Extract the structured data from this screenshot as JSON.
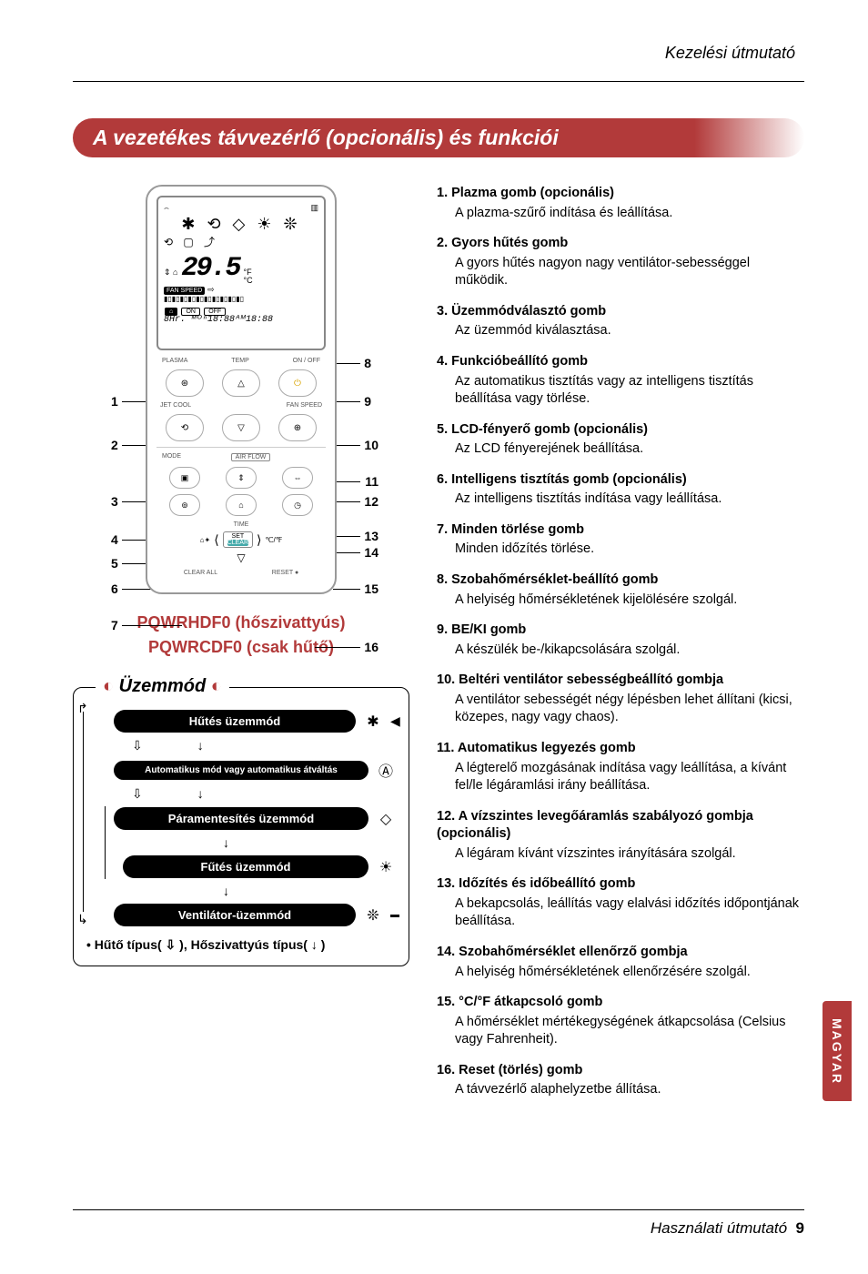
{
  "header": {
    "doc_title": "Kezelési útmutató"
  },
  "title_bar": "A vezetékes távvezérlő (opcionális) és funkciói",
  "remote": {
    "lcd": {
      "top_left": "⌢",
      "top_right": "▥",
      "icon_row": "✱ ⟲ ◇ ☀ ❊",
      "icon_row2": "⟲ ▢ ⤴",
      "temp_left_icons": "⇕\n⌂",
      "temp_value": "29.5",
      "temp_unit_f": "°F",
      "temp_unit_c": "°C",
      "fan_speed_label": "FAN SPEED",
      "arrow": "⇨",
      "bars": "▮▯▮▯▮▯▮▯▮▯▮▯▮▯▮▯▮▯▮▯",
      "house": "⌂",
      "on": "ON",
      "off": "OFF",
      "time_line": "8Hr. ᴹᴼⁿ18:88ᴬᴹ18:88"
    },
    "labels": {
      "plasma": "PLASMA",
      "temp": "TEMP",
      "onoff": "ON / OFF",
      "jetcool": "JET COOL",
      "fanspeed": "FAN SPEED",
      "mode": "MODE",
      "airflow": "AIR FLOW",
      "time": "TIME",
      "set": "SET",
      "clear": "CLEAR",
      "clearall": "CLEAR ALL",
      "reset": "RESET ●",
      "cf": "℃/℉"
    },
    "btn_glyphs": {
      "plasma": "⊛",
      "up": "△",
      "power": "⏻",
      "jet": "⟲",
      "down": "▽",
      "fan": "⊕",
      "mode": "▣",
      "swing_v": "⇕",
      "swing_h": "⇔",
      "func": "⊚",
      "room": "⌂",
      "clock": "◷",
      "smart": "⌂✦",
      "left": "⟨",
      "right": "⟩",
      "downsmall": "▽"
    },
    "callouts_left": [
      "1",
      "2",
      "3",
      "4",
      "5",
      "6",
      "7"
    ],
    "callouts_right": [
      "8",
      "9",
      "10",
      "11",
      "12",
      "13",
      "14",
      "15",
      "16"
    ]
  },
  "models": {
    "line1": "PQWRHDF0 (hőszivattyús)",
    "line2": "PQWRCDF0 (csak hűtő)"
  },
  "uzemmod": {
    "title": "Üzemmód",
    "rows": [
      {
        "label": "Hűtés üzemmód",
        "icon": "✱",
        "indent": false
      },
      {
        "label": "Automatikus mód vagy automatikus átváltás",
        "icon": "Ⓐ",
        "indent": false,
        "small": true
      },
      {
        "label": "Páramentesítés üzemmód",
        "icon": "◇",
        "indent": false
      },
      {
        "label": "Fűtés üzemmód",
        "icon": "☀",
        "indent": true
      },
      {
        "label": "Ventilátor-üzemmód",
        "icon": "❊",
        "indent": false
      }
    ],
    "arrow_outline": "⇩",
    "arrow_solid": "↓",
    "footer": "• Hűtő típus( ⇩ ), Hőszivattyús típus( ↓ )"
  },
  "functions": [
    {
      "n": "1.",
      "t": "Plazma gomb (opcionális)",
      "d": "A plazma-szűrő indítása és leállítása."
    },
    {
      "n": "2.",
      "t": "Gyors hűtés gomb",
      "d": "A gyors hűtés nagyon nagy ventilátor-sebességgel működik."
    },
    {
      "n": "3.",
      "t": "Üzemmódválasztó gomb",
      "d": "Az üzemmód kiválasztása."
    },
    {
      "n": "4.",
      "t": "Funkcióbeállító gomb",
      "d": "Az automatikus tisztítás vagy az intelligens tisztítás beállítása vagy törlése."
    },
    {
      "n": "5.",
      "t": "LCD-fényerő gomb (opcionális)",
      "d": "Az LCD fényerejének beállítása."
    },
    {
      "n": "6.",
      "t": "Intelligens tisztítás gomb (opcionális)",
      "d": "Az intelligens tisztítás indítása vagy leállítása."
    },
    {
      "n": "7.",
      "t": "Minden törlése gomb",
      "d": "Minden időzítés törlése."
    },
    {
      "n": "8.",
      "t": "Szobahőmérséklet-beállító gomb",
      "d": "A helyiség hőmérsékletének kijelölésére szolgál."
    },
    {
      "n": "9.",
      "t": "BE/KI gomb",
      "d": "A készülék be-/kikapcsolására szolgál."
    },
    {
      "n": "10.",
      "t": "Beltéri ventilátor sebességbeállító gombja",
      "d": "A ventilátor sebességét négy lépésben lehet állítani (kicsi, közepes, nagy vagy chaos)."
    },
    {
      "n": "11.",
      "t": "Automatikus legyezés gomb",
      "d": "A légterelő mozgásának indítása vagy leállítása, a kívánt fel/le légáramlási irány beállítása."
    },
    {
      "n": "12.",
      "t": "A vízszintes levegőáramlás szabályozó gombja (opcionális)",
      "d": "A légáram kívánt vízszintes irányítására szolgál."
    },
    {
      "n": "13.",
      "t": "Időzítés és időbeállító gomb",
      "d": "A bekapcsolás, leállítás vagy elalvási időzítés időpontjának beállítása."
    },
    {
      "n": "14.",
      "t": "Szobahőmérséklet ellenőrző gombja",
      "d": "A helyiség hőmérsékletének ellenőrzésére szolgál."
    },
    {
      "n": "15.",
      "t": "°C/°F átkapcsoló gomb",
      "d": "A hőmérséklet mértékegységének átkapcsolása (Celsius vagy Fahrenheit)."
    },
    {
      "n": "16.",
      "t": "Reset (törlés) gomb",
      "d": "A távvezérlő alaphelyzetbe állítása."
    }
  ],
  "footer": {
    "text": "Használati útmutató",
    "page": "9"
  },
  "side_tab": "MAGYAR",
  "colors": {
    "accent": "#b23a3a"
  }
}
